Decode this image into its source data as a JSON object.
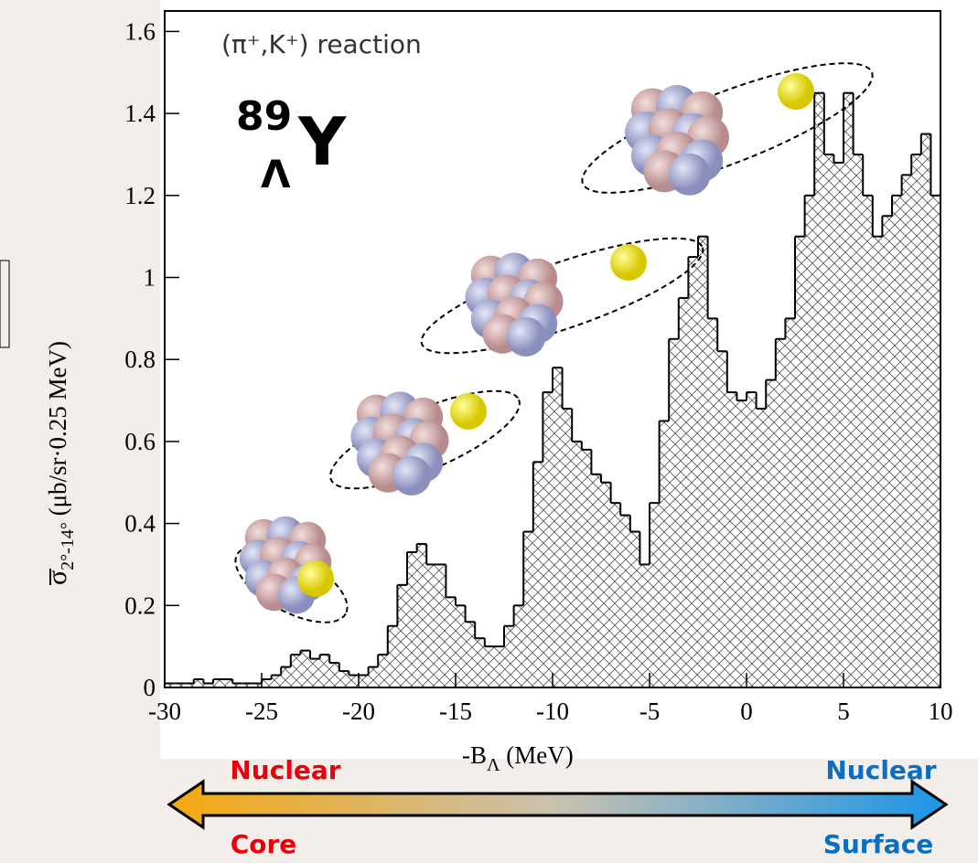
{
  "chart_data": {
    "type": "histogram",
    "title": "(π⁺,K⁺) reaction",
    "nucleus": {
      "mass": "89",
      "hyperon": "Λ",
      "symbol": "Y"
    },
    "y_label": {
      "symbol": "σ",
      "sub": "2°-14°",
      "units": " (μb/sr·0.25 MeV)"
    },
    "x_label": {
      "symbol": "-B",
      "sub": "Λ",
      "units": " (MeV)"
    },
    "arrow_labels": {
      "left_top": "Nuclear",
      "left_bottom": "Core",
      "right_top": "Nuclear",
      "right_bottom": "Surface"
    },
    "color": "#000000",
    "bins": [
      -30,
      -29.5,
      -29,
      -28.5,
      -28,
      -27.5,
      -27,
      -26.5,
      -26,
      -25.5,
      -25,
      -24.5,
      -24,
      -23.5,
      -23,
      -22.5,
      -22,
      -21.5,
      -21,
      -20.5,
      -20,
      -19.5,
      -19,
      -18.5,
      -18,
      -17.5,
      -17,
      -16.5,
      -16,
      -15.5,
      -15,
      -14.5,
      -14,
      -13.5,
      -13,
      -12.5,
      -12,
      -11.5,
      -11,
      -10.5,
      -10,
      -9.5,
      -9,
      -8.5,
      -8,
      -7.5,
      -7,
      -6.5,
      -6,
      -5.5,
      -5,
      -4.5,
      -4,
      -3.5,
      -3,
      -2.5,
      -2,
      -1.5,
      -1,
      -0.5,
      0,
      0.5,
      1,
      1.5,
      2,
      2.5,
      3,
      3.5,
      4,
      4.5,
      5,
      5.5,
      6,
      6.5,
      7,
      7.5,
      8,
      8.5,
      9,
      9.5,
      10
    ],
    "counts": [
      0.01,
      0.01,
      0.01,
      0.02,
      0.01,
      0.02,
      0.02,
      0.01,
      0.01,
      0.01,
      0.02,
      0.03,
      0.05,
      0.08,
      0.09,
      0.07,
      0.08,
      0.06,
      0.04,
      0.03,
      0.03,
      0.05,
      0.08,
      0.15,
      0.25,
      0.33,
      0.35,
      0.3,
      0.3,
      0.22,
      0.2,
      0.16,
      0.12,
      0.1,
      0.1,
      0.15,
      0.2,
      0.38,
      0.55,
      0.72,
      0.78,
      0.68,
      0.6,
      0.58,
      0.52,
      0.5,
      0.45,
      0.42,
      0.38,
      0.3,
      0.45,
      0.65,
      0.85,
      0.95,
      1.05,
      1.1,
      0.9,
      0.82,
      0.72,
      0.7,
      0.72,
      0.68,
      0.75,
      0.85,
      0.9,
      1.1,
      1.2,
      1.45,
      1.3,
      1.28,
      1.45,
      1.3,
      1.2,
      1.1,
      1.15,
      1.2,
      1.25,
      1.3,
      1.35,
      1.2
    ],
    "xlim": [
      -30,
      10
    ],
    "xticks": [
      -30,
      -25,
      -20,
      -15,
      -10,
      -5,
      0,
      5,
      10
    ],
    "ylim": [
      0,
      1.65
    ],
    "yticks": [
      0,
      0.2,
      0.4,
      0.6,
      0.8,
      1,
      1.2,
      1.4,
      1.6
    ]
  }
}
